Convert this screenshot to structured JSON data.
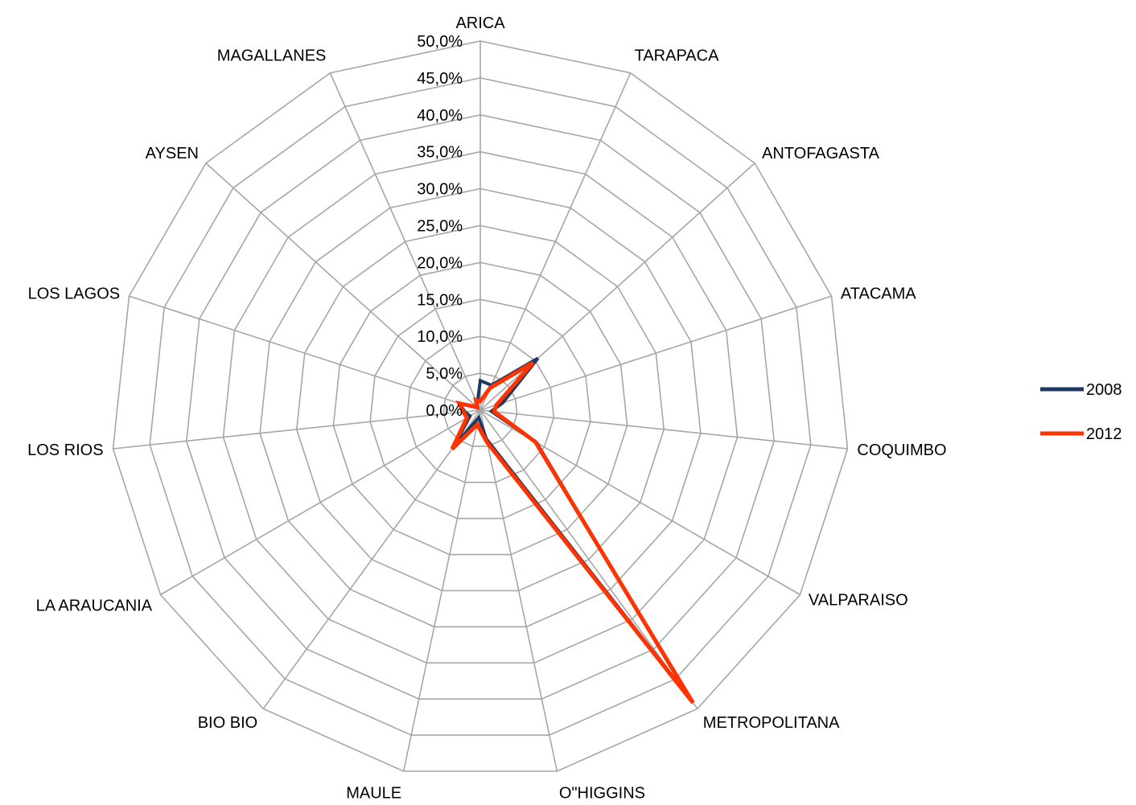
{
  "chart_data": {
    "type": "radar",
    "title": "",
    "categories": [
      "ARICA",
      "TARAPACA",
      "ANTOFAGASTA",
      "ATACAMA",
      "COQUIMBO",
      "VALPARAISO",
      "METROPOLITANA",
      "O\"HIGGINS",
      "MAULE",
      "BIO BIO",
      "LA ARAUCANIA",
      "LOS RIOS",
      "LOS LAGOS",
      "AYSEN",
      "MAGALLANES"
    ],
    "radial_ticks": [
      "0,0%",
      "5,0%",
      "10,0%",
      "15,0%",
      "20,0%",
      "25,0%",
      "30,0%",
      "35,0%",
      "40,0%",
      "45,0%",
      "50,0%"
    ],
    "range": [
      0,
      50
    ],
    "unit": "%",
    "grid": true,
    "legend_position": "right",
    "series": [
      {
        "name": "2008",
        "color": "#1f3864",
        "values": [
          4.0,
          3.7,
          10.5,
          3.2,
          1.5,
          8.8,
          48.0,
          4.0,
          1.0,
          6.3,
          1.6,
          2.1,
          3.0,
          0.5,
          1.0
        ]
      },
      {
        "name": "2012",
        "color": "#ff3300",
        "values": [
          1.2,
          3.3,
          9.6,
          2.3,
          1.9,
          8.6,
          49.0,
          4.5,
          2.0,
          6.5,
          2.1,
          2.3,
          3.0,
          0.6,
          1.5
        ]
      }
    ]
  }
}
